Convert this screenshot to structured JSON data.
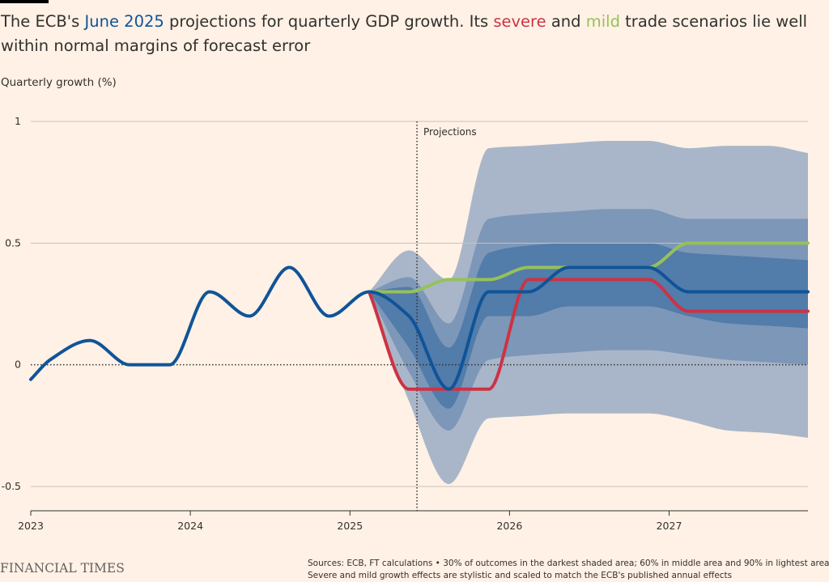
{
  "title": {
    "part1": "The ECB's ",
    "june": "June 2025",
    "part2": " projections for quarterly GDP growth. Its ",
    "severe": "severe",
    "part3": " and ",
    "mild": "mild",
    "part4": " trade scenarios lie well within normal margins of forecast error"
  },
  "footer": {
    "logo": "FINANCIAL TIMES",
    "source_line1": "Sources: ECB, FT calculations • 30% of outcomes in the darkest shaded area; 60% in middle area and 90% in lightest area",
    "source_line2": "Severe and mild growth effects are stylistic and scaled to match the ECB's published annual effects"
  },
  "colors": {
    "background": "#fff1e5",
    "baseline": "#0f5499",
    "severe": "#cc3344",
    "mild": "#96c15a",
    "band90": "#a9b6c9",
    "band60": "#7d97b8",
    "band30": "#527ca9"
  },
  "chart_data": {
    "type": "line",
    "ylabel": "Quarterly growth (%)",
    "xlabel": "",
    "ylim": [
      -0.6,
      1.0
    ],
    "x_domain": [
      2023.0,
      2027.87
    ],
    "y_ticks": [
      {
        "value": 1,
        "label": "1"
      },
      {
        "value": 0.5,
        "label": "0.5"
      },
      {
        "value": 0,
        "label": "0"
      },
      {
        "value": -0.5,
        "label": "-0.5"
      }
    ],
    "x_ticks": [
      {
        "value": 2023,
        "label": "2023"
      },
      {
        "value": 2024,
        "label": "2024"
      },
      {
        "value": 2025,
        "label": "2025"
      },
      {
        "value": 2026,
        "label": "2026"
      },
      {
        "value": 2027,
        "label": "2027"
      }
    ],
    "projection_marker": {
      "x": 2025.42,
      "label": "Projections"
    },
    "zero_line": 0,
    "series": [
      {
        "key": "baseline",
        "x": [
          2023.0,
          2023.12,
          2023.37,
          2023.62,
          2023.87,
          2024.12,
          2024.37,
          2024.62,
          2024.87,
          2025.12,
          2025.37,
          2025.62,
          2025.87,
          2026.12,
          2026.37,
          2026.62,
          2026.87,
          2027.12,
          2027.37,
          2027.62,
          2027.87
        ],
        "y": [
          -0.06,
          0.02,
          0.1,
          0.0,
          0.0,
          0.3,
          0.2,
          0.4,
          0.2,
          0.3,
          0.2,
          -0.1,
          0.3,
          0.3,
          0.4,
          0.4,
          0.4,
          0.3,
          0.3,
          0.3,
          0.3
        ]
      },
      {
        "key": "severe",
        "x": [
          2025.12,
          2025.37,
          2025.62,
          2025.87,
          2026.12,
          2026.37,
          2026.62,
          2026.87,
          2027.12,
          2027.37,
          2027.62,
          2027.87
        ],
        "y": [
          0.3,
          -0.1,
          -0.1,
          -0.1,
          0.35,
          0.35,
          0.35,
          0.35,
          0.22,
          0.22,
          0.22,
          0.22
        ]
      },
      {
        "key": "mild",
        "x": [
          2025.12,
          2025.37,
          2025.62,
          2025.87,
          2026.12,
          2026.37,
          2026.62,
          2026.87,
          2027.12,
          2027.37,
          2027.62,
          2027.87
        ],
        "y": [
          0.3,
          0.3,
          0.35,
          0.35,
          0.4,
          0.4,
          0.4,
          0.4,
          0.5,
          0.5,
          0.5,
          0.5
        ]
      }
    ],
    "bands": [
      {
        "key": "band90",
        "x": [
          2025.12,
          2025.37,
          2025.62,
          2025.87,
          2026.12,
          2026.37,
          2026.62,
          2026.87,
          2027.12,
          2027.37,
          2027.62,
          2027.87
        ],
        "upper": [
          0.3,
          0.47,
          0.35,
          0.89,
          0.9,
          0.91,
          0.92,
          0.92,
          0.89,
          0.9,
          0.9,
          0.87
        ],
        "lower": [
          0.3,
          -0.15,
          -0.49,
          -0.22,
          -0.21,
          -0.2,
          -0.2,
          -0.2,
          -0.23,
          -0.27,
          -0.28,
          -0.3
        ]
      },
      {
        "key": "band60",
        "x": [
          2025.12,
          2025.37,
          2025.62,
          2025.87,
          2026.12,
          2026.37,
          2026.62,
          2026.87,
          2027.12,
          2027.37,
          2027.62,
          2027.87
        ],
        "upper": [
          0.3,
          0.36,
          0.17,
          0.6,
          0.62,
          0.63,
          0.64,
          0.64,
          0.6,
          0.6,
          0.6,
          0.6
        ],
        "lower": [
          0.3,
          -0.03,
          -0.27,
          0.02,
          0.04,
          0.05,
          0.06,
          0.06,
          0.04,
          0.02,
          0.01,
          0.0
        ]
      },
      {
        "key": "band30",
        "x": [
          2025.12,
          2025.37,
          2025.62,
          2025.87,
          2026.12,
          2026.37,
          2026.62,
          2026.87,
          2027.12,
          2027.37,
          2027.62,
          2027.87
        ],
        "upper": [
          0.3,
          0.32,
          0.07,
          0.46,
          0.49,
          0.5,
          0.5,
          0.5,
          0.46,
          0.45,
          0.44,
          0.43
        ],
        "lower": [
          0.3,
          0.07,
          -0.18,
          0.2,
          0.2,
          0.24,
          0.24,
          0.24,
          0.2,
          0.17,
          0.16,
          0.15
        ]
      }
    ]
  }
}
